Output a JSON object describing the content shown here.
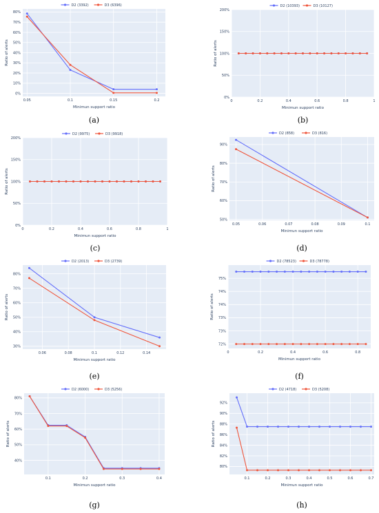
{
  "colors": {
    "D2": "#636efa",
    "D3": "#ef553b",
    "plot_bg": "#e5ecf6",
    "text": "#2a3f5f"
  },
  "chart_data": [
    {
      "label": "(a)",
      "type": "line",
      "xlabel": "Minimun support ratio",
      "ylabel": "Ratio of alerts",
      "xlim": [
        0.045,
        0.21
      ],
      "ylim": [
        -3,
        83
      ],
      "xticks": [
        0.05,
        0.1,
        0.15,
        0.2
      ],
      "xtick_labels": [
        "0.05",
        "0.1",
        "0.15",
        "0.2"
      ],
      "yticks": [
        0,
        10,
        20,
        30,
        40,
        50,
        60,
        70,
        80
      ],
      "ytick_labels": [
        "0%",
        "10%",
        "20%",
        "30%",
        "40%",
        "50%",
        "60%",
        "70%",
        "80%"
      ],
      "series": [
        {
          "name": "D2 (3392)",
          "x": [
            0.05,
            0.1,
            0.15,
            0.2
          ],
          "y": [
            78.5,
            23,
            4,
            4
          ]
        },
        {
          "name": "D3 (6396)",
          "x": [
            0.05,
            0.1,
            0.15,
            0.2
          ],
          "y": [
            75.5,
            28,
            0.5,
            0.5
          ]
        }
      ]
    },
    {
      "label": "(b)",
      "type": "line",
      "xlabel": "Minimun support ratio",
      "ylabel": "Ratio of alerts",
      "xlim": [
        0,
        1
      ],
      "ylim": [
        0,
        200
      ],
      "xticks": [
        0,
        0.2,
        0.4,
        0.6,
        0.8,
        1
      ],
      "xtick_labels": [
        "0",
        "0.2",
        "0.4",
        "0.6",
        "0.8",
        "1"
      ],
      "yticks": [
        0,
        50,
        100,
        150,
        200
      ],
      "ytick_labels": [
        "0%",
        "50%",
        "100%",
        "150%",
        "200%"
      ],
      "series": [
        {
          "name": "D2 (10393)",
          "x": [
            0.05,
            0.1,
            0.15,
            0.2,
            0.25,
            0.3,
            0.35,
            0.4,
            0.45,
            0.5,
            0.55,
            0.6,
            0.65,
            0.7,
            0.75,
            0.8,
            0.85,
            0.9,
            0.95
          ],
          "y": [
            100,
            100,
            100,
            100,
            100,
            100,
            100,
            100,
            100,
            100,
            100,
            100,
            100,
            100,
            100,
            100,
            100,
            100,
            100
          ]
        },
        {
          "name": "D3 (10127)",
          "x": [
            0.05,
            0.1,
            0.15,
            0.2,
            0.25,
            0.3,
            0.35,
            0.4,
            0.45,
            0.5,
            0.55,
            0.6,
            0.65,
            0.7,
            0.75,
            0.8,
            0.85,
            0.9,
            0.95
          ],
          "y": [
            100,
            100,
            100,
            100,
            100,
            100,
            100,
            100,
            100,
            100,
            100,
            100,
            100,
            100,
            100,
            100,
            100,
            100,
            100
          ]
        }
      ]
    },
    {
      "label": "(c)",
      "type": "line",
      "xlabel": "Minimun support ratio",
      "ylabel": "Ratio of alerts",
      "xlim": [
        0,
        1
      ],
      "ylim": [
        0,
        200
      ],
      "xticks": [
        0,
        0.2,
        0.4,
        0.6,
        0.8,
        1
      ],
      "xtick_labels": [
        "0",
        "0.2",
        "0.4",
        "0.6",
        "0.8",
        "1"
      ],
      "yticks": [
        0,
        50,
        100,
        150,
        200
      ],
      "ytick_labels": [
        "0%",
        "50%",
        "100%",
        "150%",
        "200%"
      ],
      "series": [
        {
          "name": "D2 (9975)",
          "x": [
            0.05,
            0.1,
            0.15,
            0.2,
            0.25,
            0.3,
            0.35,
            0.4,
            0.45,
            0.5,
            0.55,
            0.6,
            0.65,
            0.7,
            0.75,
            0.8,
            0.85,
            0.9,
            0.95
          ],
          "y": [
            100,
            100,
            100,
            100,
            100,
            100,
            100,
            100,
            100,
            100,
            100,
            100,
            100,
            100,
            100,
            100,
            100,
            100,
            100
          ]
        },
        {
          "name": "D3 (9918)",
          "x": [
            0.05,
            0.1,
            0.15,
            0.2,
            0.25,
            0.3,
            0.35,
            0.4,
            0.45,
            0.5,
            0.55,
            0.6,
            0.65,
            0.7,
            0.75,
            0.8,
            0.85,
            0.9,
            0.95
          ],
          "y": [
            100,
            100,
            100,
            100,
            100,
            100,
            100,
            100,
            100,
            100,
            100,
            100,
            100,
            100,
            100,
            100,
            100,
            100,
            100
          ]
        }
      ]
    },
    {
      "label": "(d)",
      "type": "line",
      "xlabel": "Minimun support ratio",
      "ylabel": "Ratio of alerts",
      "xlim": [
        0.0475,
        0.1025
      ],
      "ylim": [
        49.5,
        94
      ],
      "xticks": [
        0.05,
        0.06,
        0.07,
        0.08,
        0.09,
        0.1
      ],
      "xtick_labels": [
        "0.05",
        "0.06",
        "0.07",
        "0.08",
        "0.09",
        "0.1"
      ],
      "yticks": [
        50,
        60,
        70,
        80,
        90
      ],
      "ytick_labels": [
        "50%",
        "60%",
        "70%",
        "80%",
        "90%"
      ],
      "series": [
        {
          "name": "D2 (858)",
          "x": [
            0.05,
            0.1
          ],
          "y": [
            92.5,
            51
          ]
        },
        {
          "name": "D3 (816)",
          "x": [
            0.05,
            0.1
          ],
          "y": [
            87.5,
            51
          ]
        }
      ]
    },
    {
      "label": "(e)",
      "type": "line",
      "xlabel": "Minimun support ratio",
      "ylabel": "Ratio of alerts",
      "xlim": [
        0.045,
        0.155
      ],
      "ylim": [
        28,
        86
      ],
      "xticks": [
        0.06,
        0.08,
        0.1,
        0.12,
        0.14
      ],
      "xtick_labels": [
        "0.06",
        "0.08",
        "0.1",
        "0.12",
        "0.14"
      ],
      "yticks": [
        30,
        40,
        50,
        60,
        70,
        80
      ],
      "ytick_labels": [
        "30%",
        "40%",
        "50%",
        "60%",
        "70%",
        "80%"
      ],
      "series": [
        {
          "name": "D2 (2013)",
          "x": [
            0.05,
            0.1,
            0.15
          ],
          "y": [
            84,
            50,
            36
          ]
        },
        {
          "name": "D3 (2739)",
          "x": [
            0.05,
            0.1,
            0.15
          ],
          "y": [
            77,
            48,
            30
          ]
        }
      ]
    },
    {
      "label": "(f)",
      "type": "line",
      "xlabel": "Minimun support ratio",
      "ylabel": "Ratio of alerts",
      "xlim": [
        0,
        0.88
      ],
      "ylim": [
        71.8,
        75.6
      ],
      "xticks": [
        0,
        0.2,
        0.4,
        0.6,
        0.8
      ],
      "xtick_labels": [
        "0",
        "0.2",
        "0.4",
        "0.6",
        "0.8"
      ],
      "yticks": [
        72,
        72.6,
        73.2,
        73.8,
        74.4,
        75
      ],
      "ytick_labels": [
        "72%",
        "73%",
        "73%",
        "74%",
        "74%",
        "75%"
      ],
      "series": [
        {
          "name": "D2 (78523)",
          "x": [
            0.05,
            0.1,
            0.15,
            0.2,
            0.25,
            0.3,
            0.35,
            0.4,
            0.45,
            0.5,
            0.55,
            0.6,
            0.65,
            0.7,
            0.75,
            0.8,
            0.85
          ],
          "y": [
            75.3,
            75.3,
            75.3,
            75.3,
            75.3,
            75.3,
            75.3,
            75.3,
            75.3,
            75.3,
            75.3,
            75.3,
            75.3,
            75.3,
            75.3,
            75.3,
            75.3
          ]
        },
        {
          "name": "D3 (78778)",
          "x": [
            0.05,
            0.1,
            0.15,
            0.2,
            0.25,
            0.3,
            0.35,
            0.4,
            0.45,
            0.5,
            0.55,
            0.6,
            0.65,
            0.7,
            0.75,
            0.8,
            0.85
          ],
          "y": [
            72,
            72,
            72,
            72,
            72,
            72,
            72,
            72,
            72,
            72,
            72,
            72,
            72,
            72,
            72,
            72,
            72
          ]
        }
      ]
    },
    {
      "label": "(g)",
      "type": "line",
      "xlabel": "Minimun support ratio",
      "ylabel": "Ratio of alerts",
      "xlim": [
        0.035,
        0.415
      ],
      "ylim": [
        31,
        83
      ],
      "xticks": [
        0.1,
        0.2,
        0.3,
        0.4
      ],
      "xtick_labels": [
        "0.1",
        "0.2",
        "0.3",
        "0.4"
      ],
      "yticks": [
        40,
        50,
        60,
        70,
        80
      ],
      "ytick_labels": [
        "40%",
        "50%",
        "60%",
        "70%",
        "80%"
      ],
      "series": [
        {
          "name": "D2 (6000)",
          "x": [
            0.05,
            0.1,
            0.15,
            0.2,
            0.25,
            0.3,
            0.35,
            0.4
          ],
          "y": [
            81,
            62.5,
            62.5,
            55,
            35,
            35,
            35,
            35
          ]
        },
        {
          "name": "D3 (5256)",
          "x": [
            0.05,
            0.1,
            0.15,
            0.2,
            0.25,
            0.3,
            0.35,
            0.4
          ],
          "y": [
            81,
            62,
            62,
            54.5,
            34.5,
            34.5,
            34.5,
            34.5
          ]
        }
      ]
    },
    {
      "label": "(h)",
      "type": "line",
      "xlabel": "Minimun support ratio",
      "ylabel": "Ratio of alerts",
      "xlim": [
        0.015,
        0.715
      ],
      "ylim": [
        78.5,
        93.8
      ],
      "xticks": [
        0.1,
        0.2,
        0.3,
        0.4,
        0.5,
        0.6,
        0.7
      ],
      "xtick_labels": [
        "0.1",
        "0.2",
        "0.3",
        "0.4",
        "0.5",
        "0.6",
        "0.7"
      ],
      "yticks": [
        80,
        82,
        84,
        86,
        88,
        90,
        92
      ],
      "ytick_labels": [
        "80%",
        "82%",
        "84%",
        "86%",
        "88%",
        "90%",
        "92%"
      ],
      "series": [
        {
          "name": "D2 (4718)",
          "x": [
            0.05,
            0.1,
            0.15,
            0.2,
            0.25,
            0.3,
            0.35,
            0.4,
            0.45,
            0.5,
            0.55,
            0.6,
            0.65,
            0.7
          ],
          "y": [
            93,
            87.5,
            87.5,
            87.5,
            87.5,
            87.5,
            87.5,
            87.5,
            87.5,
            87.5,
            87.5,
            87.5,
            87.5,
            87.5
          ]
        },
        {
          "name": "D3 (5208)",
          "x": [
            0.05,
            0.1,
            0.15,
            0.2,
            0.25,
            0.3,
            0.35,
            0.4,
            0.45,
            0.5,
            0.55,
            0.6,
            0.65,
            0.7
          ],
          "y": [
            87.3,
            79.3,
            79.3,
            79.3,
            79.3,
            79.3,
            79.3,
            79.3,
            79.3,
            79.3,
            79.3,
            79.3,
            79.3,
            79.3
          ]
        }
      ]
    }
  ]
}
